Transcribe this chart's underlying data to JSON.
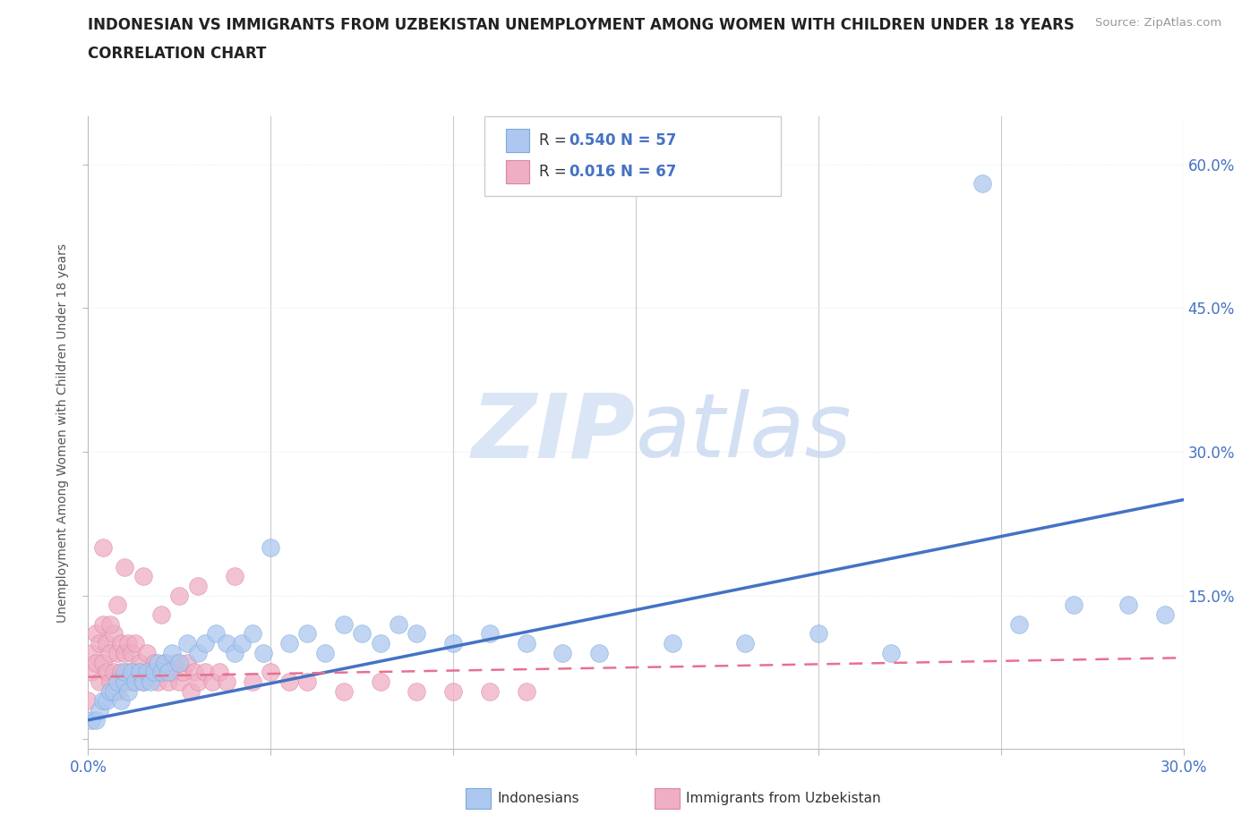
{
  "title_line1": "INDONESIAN VS IMMIGRANTS FROM UZBEKISTAN UNEMPLOYMENT AMONG WOMEN WITH CHILDREN UNDER 18 YEARS",
  "title_line2": "CORRELATION CHART",
  "source_text": "Source: ZipAtlas.com",
  "ylabel": "Unemployment Among Women with Children Under 18 years",
  "xlim": [
    0.0,
    0.3
  ],
  "ylim": [
    -0.01,
    0.65
  ],
  "xticks": [
    0.0,
    0.05,
    0.1,
    0.15,
    0.2,
    0.25,
    0.3
  ],
  "ytick_positions": [
    0.0,
    0.15,
    0.3,
    0.45,
    0.6
  ],
  "R_indonesian": 0.54,
  "N_indonesian": 57,
  "R_uzbekistan": 0.016,
  "N_uzbekistan": 67,
  "color_indonesian": "#adc8f0",
  "color_uzbekistan": "#f0aec4",
  "color_trendline_indonesian": "#4472c4",
  "color_trendline_uzbekistan": "#e87090",
  "watermark_color": "#dae6f5",
  "background_color": "#ffffff",
  "grid_color": "#e8e8e8",
  "legend_R_color": "#4472c4",
  "indo_trendline_x0": 0.0,
  "indo_trendline_y0": 0.02,
  "indo_trendline_x1": 0.3,
  "indo_trendline_y1": 0.25,
  "uzb_trendline_x0": 0.0,
  "uzb_trendline_y0": 0.065,
  "uzb_trendline_x1": 0.3,
  "uzb_trendline_y1": 0.085,
  "indonesian_x": [
    0.001,
    0.002,
    0.003,
    0.004,
    0.005,
    0.006,
    0.007,
    0.008,
    0.009,
    0.01,
    0.01,
    0.011,
    0.012,
    0.013,
    0.014,
    0.015,
    0.016,
    0.017,
    0.018,
    0.019,
    0.02,
    0.021,
    0.022,
    0.023,
    0.025,
    0.027,
    0.03,
    0.032,
    0.035,
    0.038,
    0.04,
    0.042,
    0.045,
    0.048,
    0.05,
    0.055,
    0.06,
    0.065,
    0.07,
    0.075,
    0.08,
    0.085,
    0.09,
    0.1,
    0.11,
    0.12,
    0.13,
    0.14,
    0.16,
    0.18,
    0.2,
    0.22,
    0.245,
    0.255,
    0.27,
    0.285,
    0.295
  ],
  "indonesian_y": [
    0.02,
    0.02,
    0.03,
    0.04,
    0.04,
    0.05,
    0.05,
    0.06,
    0.04,
    0.06,
    0.07,
    0.05,
    0.07,
    0.06,
    0.07,
    0.06,
    0.07,
    0.06,
    0.07,
    0.08,
    0.07,
    0.08,
    0.07,
    0.09,
    0.08,
    0.1,
    0.09,
    0.1,
    0.11,
    0.1,
    0.09,
    0.1,
    0.11,
    0.09,
    0.2,
    0.1,
    0.11,
    0.09,
    0.12,
    0.11,
    0.1,
    0.12,
    0.11,
    0.1,
    0.11,
    0.1,
    0.09,
    0.09,
    0.1,
    0.1,
    0.11,
    0.09,
    0.58,
    0.12,
    0.14,
    0.14,
    0.13
  ],
  "uzbekistan_x": [
    0.0,
    0.001,
    0.001,
    0.002,
    0.002,
    0.003,
    0.003,
    0.004,
    0.004,
    0.005,
    0.005,
    0.006,
    0.006,
    0.007,
    0.007,
    0.008,
    0.008,
    0.009,
    0.009,
    0.01,
    0.01,
    0.011,
    0.011,
    0.012,
    0.012,
    0.013,
    0.013,
    0.014,
    0.015,
    0.016,
    0.017,
    0.018,
    0.019,
    0.02,
    0.021,
    0.022,
    0.023,
    0.024,
    0.025,
    0.026,
    0.027,
    0.028,
    0.029,
    0.03,
    0.032,
    0.034,
    0.036,
    0.038,
    0.04,
    0.045,
    0.05,
    0.055,
    0.06,
    0.07,
    0.08,
    0.09,
    0.1,
    0.11,
    0.12,
    0.025,
    0.03,
    0.02,
    0.015,
    0.01,
    0.008,
    0.006,
    0.004
  ],
  "uzbekistan_y": [
    0.04,
    0.07,
    0.09,
    0.08,
    0.11,
    0.06,
    0.1,
    0.08,
    0.12,
    0.07,
    0.1,
    0.06,
    0.09,
    0.07,
    0.11,
    0.05,
    0.09,
    0.07,
    0.1,
    0.06,
    0.09,
    0.07,
    0.1,
    0.06,
    0.09,
    0.07,
    0.1,
    0.08,
    0.06,
    0.09,
    0.07,
    0.08,
    0.06,
    0.07,
    0.08,
    0.06,
    0.07,
    0.08,
    0.06,
    0.07,
    0.08,
    0.05,
    0.07,
    0.06,
    0.07,
    0.06,
    0.07,
    0.06,
    0.17,
    0.06,
    0.07,
    0.06,
    0.06,
    0.05,
    0.06,
    0.05,
    0.05,
    0.05,
    0.05,
    0.15,
    0.16,
    0.13,
    0.17,
    0.18,
    0.14,
    0.12,
    0.2
  ]
}
